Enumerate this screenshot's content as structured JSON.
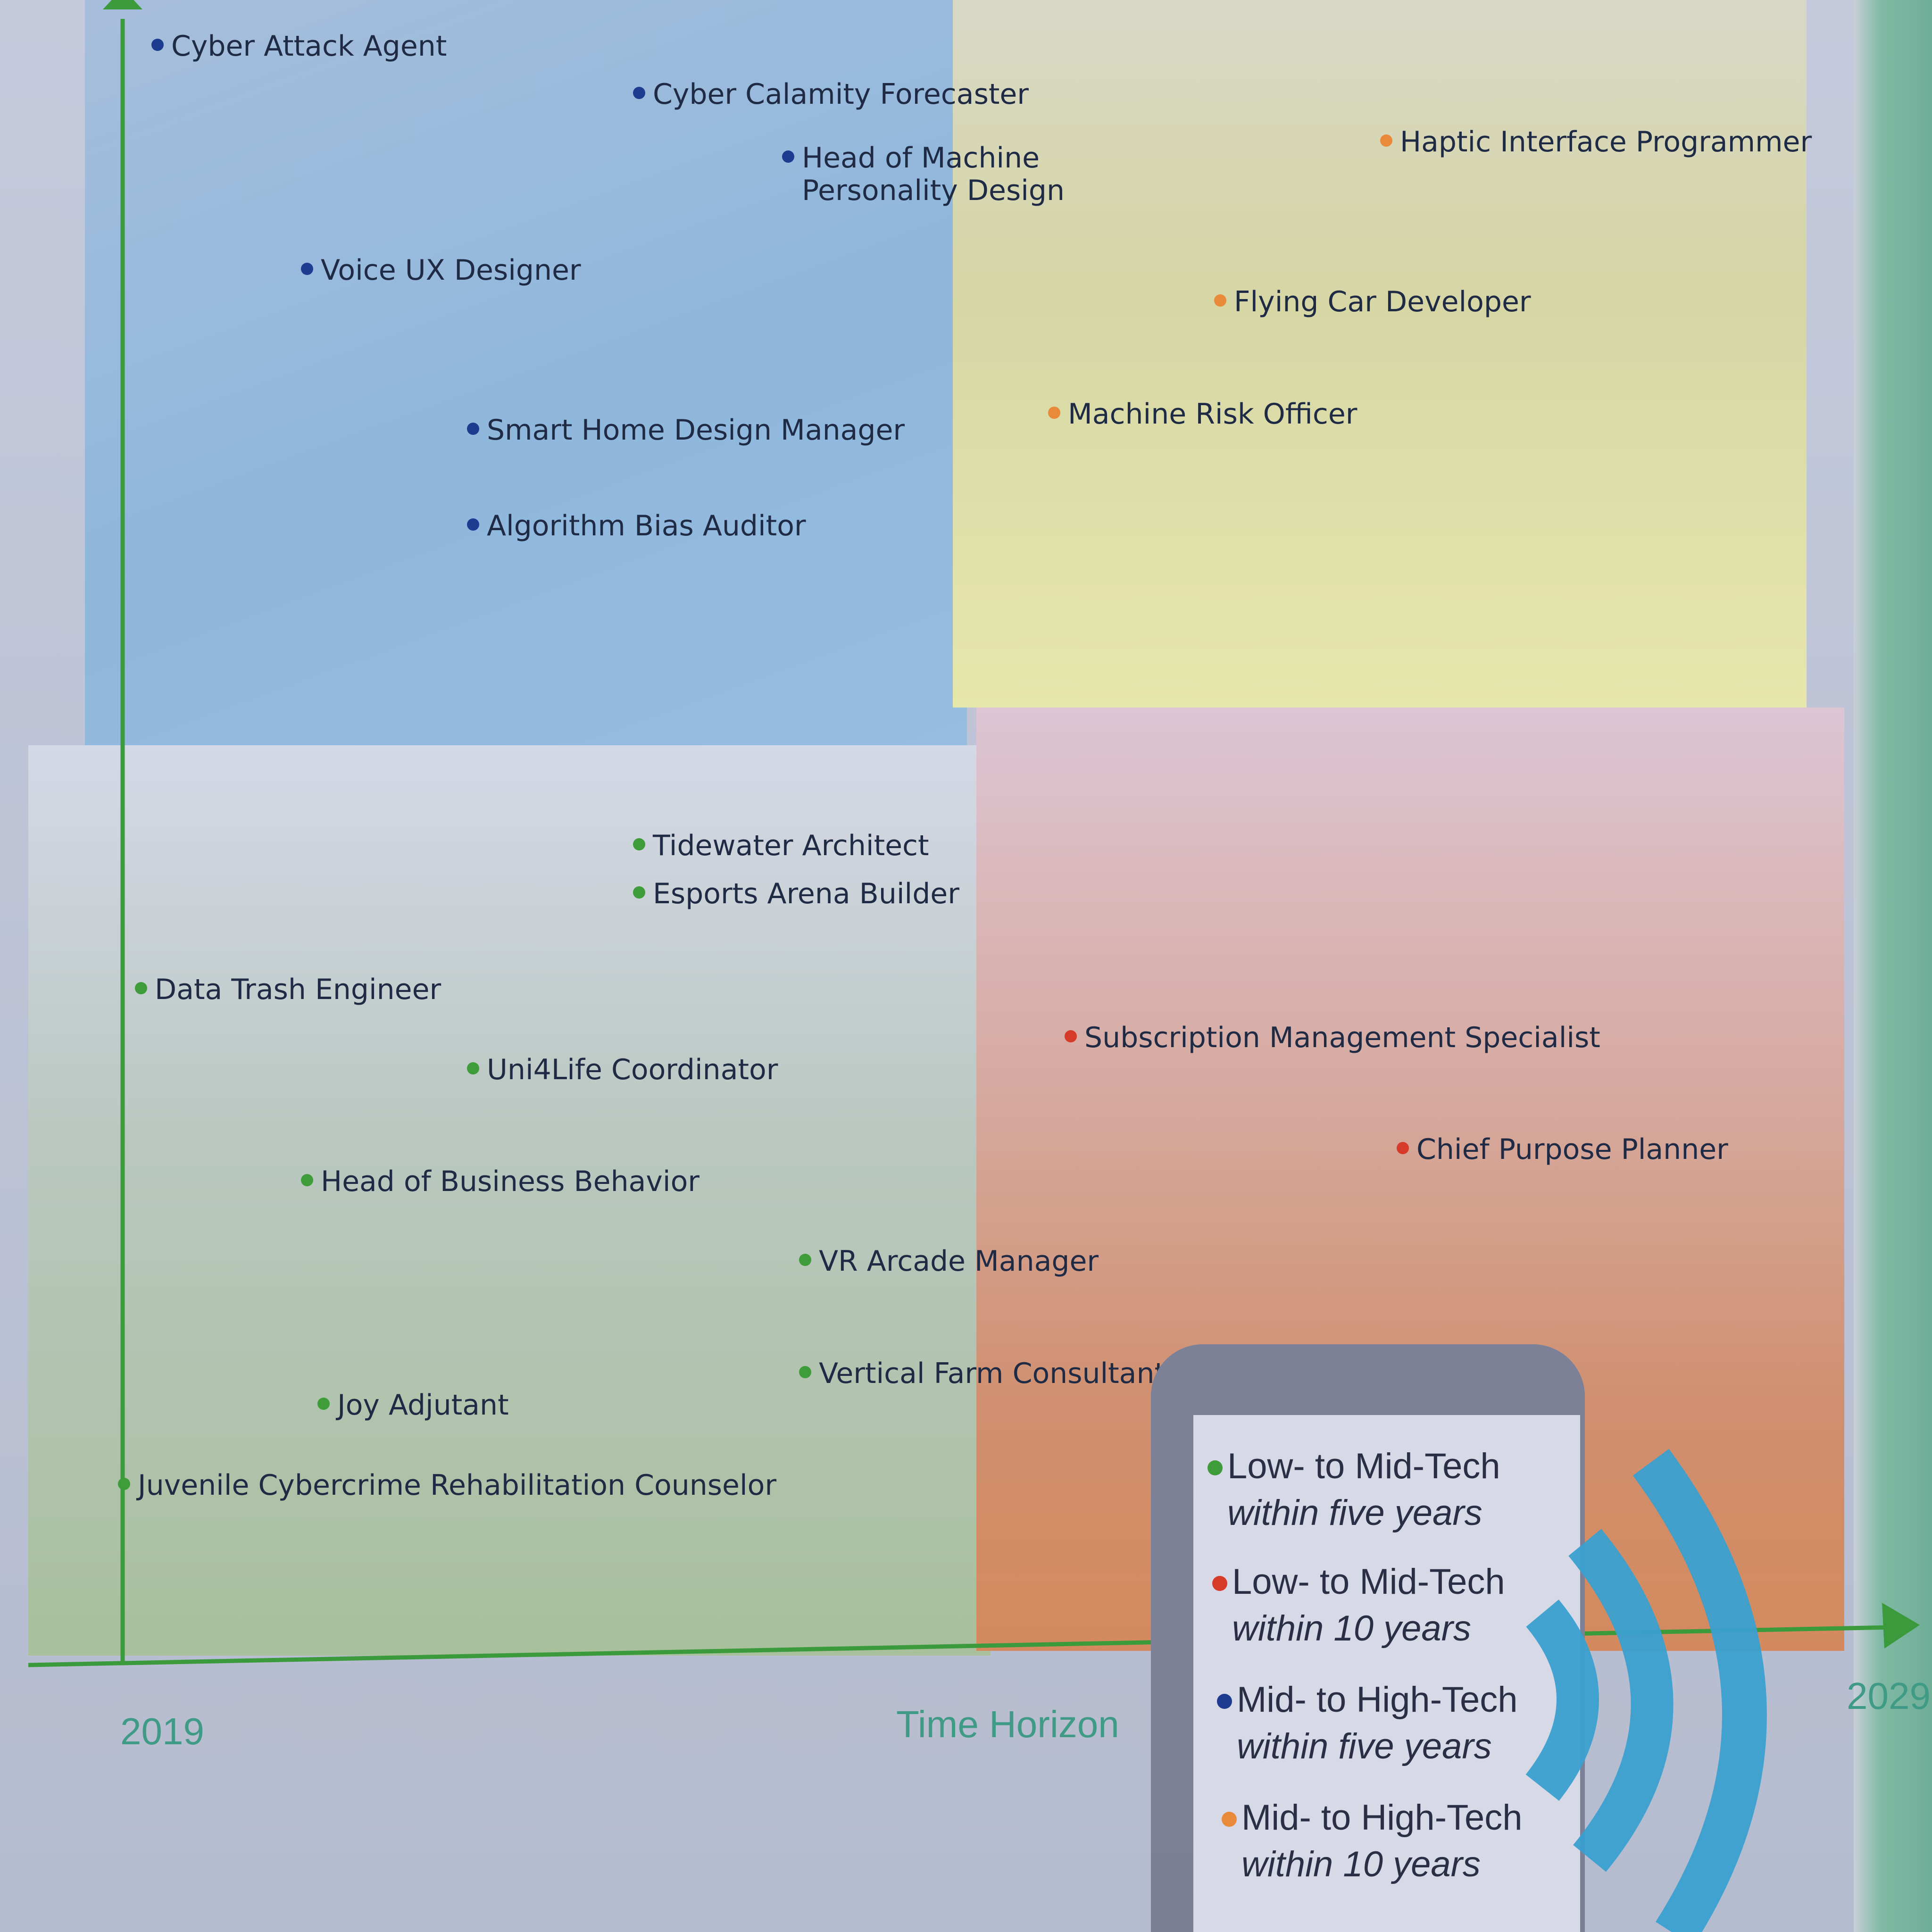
{
  "colors": {
    "low_mid_5": "#3f9c3a",
    "low_mid_10": "#d63b2a",
    "mid_high_5": "#1d3b8f",
    "mid_high_10": "#e88a3a",
    "axis": "#3a9a3c",
    "axis_text": "#3f9a86",
    "signal_arcs": "#3aa0d0"
  },
  "chart_data": {
    "type": "scatter",
    "title": "",
    "xlabel": "Time Horizon",
    "xlim": [
      2019,
      2029
    ],
    "x_tick_labels": [
      "2019",
      "2029"
    ],
    "ylabel": "",
    "grid": false,
    "legend_placement": "bottom-right",
    "legend": [
      {
        "key": "low_mid_5",
        "line1": "Low- to Mid-Tech",
        "line2": "within five years"
      },
      {
        "key": "low_mid_10",
        "line1": "Low- to Mid-Tech",
        "line2": "within 10 years"
      },
      {
        "key": "mid_high_5",
        "line1": "Mid- to High-Tech",
        "line2": "within five years"
      },
      {
        "key": "mid_high_10",
        "line1": "Mid- to High-Tech",
        "line2": "within 10 years"
      }
    ],
    "points": [
      {
        "label": "Cyber Attack Agent",
        "group": "mid_high_5",
        "x": 2019.4,
        "y": 9.9
      },
      {
        "label": "Cyber Calamity Forecaster",
        "group": "mid_high_5",
        "x": 2022.3,
        "y": 9.6
      },
      {
        "label": "Head of Machine\nPersonality Design",
        "group": "mid_high_5",
        "x": 2023.2,
        "y": 9.2
      },
      {
        "label": "Voice UX Designer",
        "group": "mid_high_5",
        "x": 2020.3,
        "y": 8.5
      },
      {
        "label": "Smart Home Design Manager",
        "group": "mid_high_5",
        "x": 2021.3,
        "y": 7.5
      },
      {
        "label": "Algorithm Bias Auditor",
        "group": "mid_high_5",
        "x": 2021.3,
        "y": 6.9
      },
      {
        "label": "Haptic Interface Programmer",
        "group": "mid_high_10",
        "x": 2026.8,
        "y": 9.3
      },
      {
        "label": "Flying Car Developer",
        "group": "mid_high_10",
        "x": 2025.8,
        "y": 8.3
      },
      {
        "label": "Machine Risk Officer",
        "group": "mid_high_10",
        "x": 2024.8,
        "y": 7.6
      },
      {
        "label": "Tidewater Architect",
        "group": "low_mid_5",
        "x": 2022.3,
        "y": 4.9
      },
      {
        "label": "Esports Arena Builder",
        "group": "low_mid_5",
        "x": 2022.3,
        "y": 4.6
      },
      {
        "label": "Data Trash Engineer",
        "group": "low_mid_5",
        "x": 2019.3,
        "y": 4.0
      },
      {
        "label": "Uni4Life Coordinator",
        "group": "low_mid_5",
        "x": 2021.3,
        "y": 3.5
      },
      {
        "label": "Head of Business Behavior",
        "group": "low_mid_5",
        "x": 2020.3,
        "y": 2.8
      },
      {
        "label": "VR Arcade Manager",
        "group": "low_mid_5",
        "x": 2023.3,
        "y": 2.3
      },
      {
        "label": "Vertical Farm Consultant",
        "group": "low_mid_5",
        "x": 2023.3,
        "y": 1.6
      },
      {
        "label": "Joy Adjutant",
        "group": "low_mid_5",
        "x": 2020.4,
        "y": 1.4
      },
      {
        "label": "Juvenile Cybercrime Rehabilitation Counselor",
        "group": "low_mid_5",
        "x": 2019.2,
        "y": 0.9
      },
      {
        "label": "Subscription Management Specialist",
        "group": "low_mid_10",
        "x": 2024.9,
        "y": 3.7
      },
      {
        "label": "Chief Purpose Planner",
        "group": "low_mid_10",
        "x": 2026.9,
        "y": 3.0
      }
    ]
  }
}
